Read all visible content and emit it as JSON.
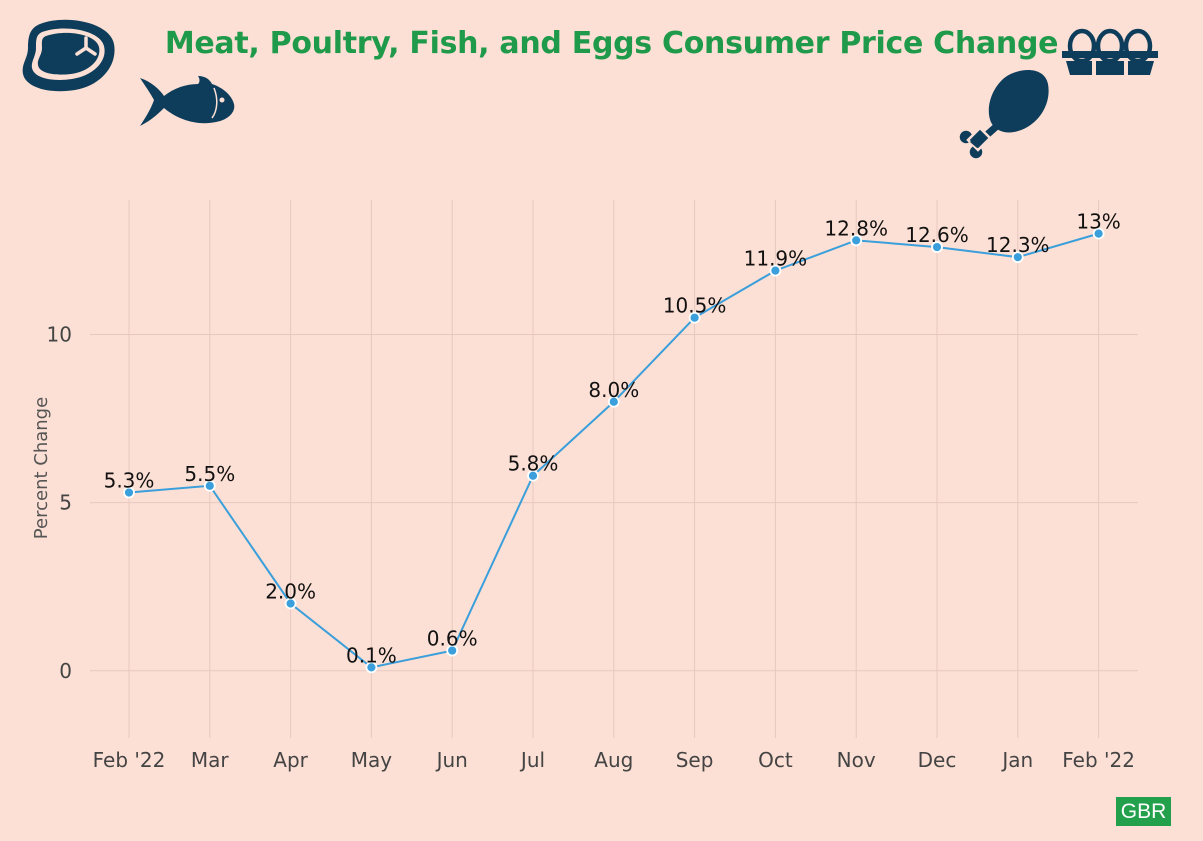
{
  "title": "Meat, Poultry, Fish, and Eggs Consumer Price Change",
  "icons": [
    "steak-icon",
    "fish-icon",
    "chicken-leg-icon",
    "egg-carton-icon"
  ],
  "brand": "GBR",
  "colors": {
    "background": "#fde0d5",
    "title": "#1f9a4a",
    "line": "#3a9fdb",
    "icon": "#0e3d5c",
    "brand": "#22a04c"
  },
  "chart_data": {
    "type": "line",
    "categories": [
      "Feb '22",
      "Mar",
      "Apr",
      "May",
      "Jun",
      "Jul",
      "Aug",
      "Sep",
      "Oct",
      "Nov",
      "Dec",
      "Jan",
      "Feb '22"
    ],
    "values": [
      5.3,
      5.5,
      2.0,
      0.1,
      0.6,
      5.8,
      8.0,
      10.5,
      11.9,
      12.8,
      12.6,
      12.3,
      13
    ],
    "data_labels": [
      "5.3%",
      "5.5%",
      "2.0%",
      "0.1%",
      "0.6%",
      "5.8%",
      "8.0%",
      "10.5%",
      "11.9%",
      "12.8%",
      "12.6%",
      "12.3%",
      "13%"
    ],
    "ylabel": "Percent Change",
    "yticks": [
      0,
      5,
      10
    ],
    "ylim": [
      -2,
      14
    ],
    "grid": true,
    "legend": "none"
  }
}
